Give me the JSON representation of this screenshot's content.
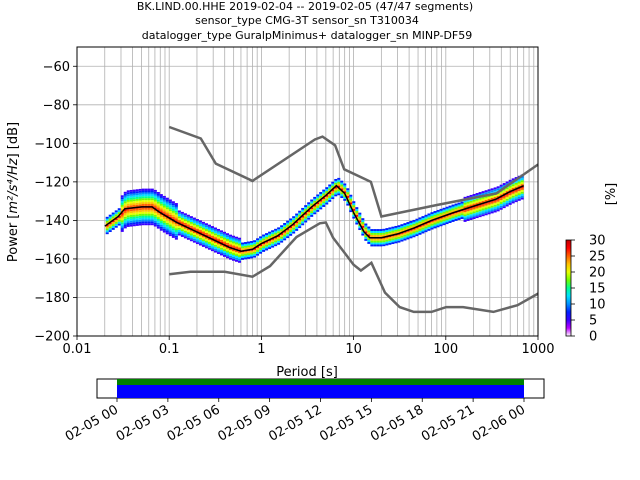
{
  "chart_data": [
    {
      "type": "heatmap",
      "title_lines": [
        "BK.LIND.00.HHE   2019-02-04 -- 2019-02-05  (47/47 segments)",
        "sensor_type CMG-3T sensor_sn T310034",
        "datalogger_type GuralpMinimus+ datalogger_sn MINP-DF59"
      ],
      "xlabel": "Period [s]",
      "ylabel_prefix": "Power [",
      "ylabel_math": "m²/s⁴/Hz",
      "ylabel_suffix": "] [dB]",
      "x_scale": "log",
      "xlim": [
        0.01,
        1000
      ],
      "ylim": [
        -200,
        -50
      ],
      "xticks": [
        0.01,
        0.1,
        1,
        10,
        100,
        1000
      ],
      "xtick_labels": [
        "0.01",
        "0.1",
        "1",
        "10",
        "100",
        "1000"
      ],
      "yticks": [
        -60,
        -80,
        -100,
        -120,
        -140,
        -160,
        -180,
        -200
      ],
      "ytick_labels": [
        "−60",
        "−80",
        "−100",
        "−120",
        "−140",
        "−160",
        "−180",
        "−200"
      ],
      "grid": true,
      "noise_models": [
        {
          "name": "NHNM",
          "color": "#666666",
          "points": [
            [
              0.1,
              -91.5
            ],
            [
              0.22,
              -97.5
            ],
            [
              0.32,
              -110.5
            ],
            [
              0.8,
              -119.5
            ],
            [
              3.8,
              -98
            ],
            [
              4.6,
              -96.5
            ],
            [
              6.3,
              -101
            ],
            [
              7.9,
              -113.5
            ],
            [
              15.4,
              -120
            ],
            [
              20,
              -138
            ],
            [
              80,
              -132
            ],
            [
              354,
              -126
            ],
            [
              1000,
              -111
            ]
          ]
        },
        {
          "name": "NLNM",
          "color": "#666666",
          "points": [
            [
              0.1,
              -168
            ],
            [
              0.17,
              -166.7
            ],
            [
              0.4,
              -166.7
            ],
            [
              0.8,
              -169.2
            ],
            [
              1.24,
              -163.7
            ],
            [
              2.4,
              -148.6
            ],
            [
              4.3,
              -141.5
            ],
            [
              5.0,
              -141.1
            ],
            [
              6.0,
              -149
            ],
            [
              10,
              -163
            ],
            [
              12,
              -166
            ],
            [
              15.6,
              -162
            ],
            [
              21.9,
              -177.5
            ],
            [
              31.6,
              -185
            ],
            [
              45,
              -187.5
            ],
            [
              70,
              -187.5
            ],
            [
              101,
              -185
            ],
            [
              154,
              -185
            ],
            [
              328,
              -187.5
            ],
            [
              600,
              -184
            ],
            [
              1000,
              -178
            ]
          ]
        }
      ],
      "mode_curve": {
        "color": "#000000",
        "points": [
          [
            0.02,
            -143
          ],
          [
            0.028,
            -138
          ],
          [
            0.033,
            -134
          ],
          [
            0.05,
            -133
          ],
          [
            0.065,
            -133
          ],
          [
            0.08,
            -136
          ],
          [
            0.12,
            -141
          ],
          [
            0.18,
            -145
          ],
          [
            0.3,
            -150
          ],
          [
            0.45,
            -154
          ],
          [
            0.6,
            -156
          ],
          [
            0.8,
            -155
          ],
          [
            1.0,
            -152
          ],
          [
            1.5,
            -148
          ],
          [
            2.2,
            -142
          ],
          [
            3.5,
            -133
          ],
          [
            5,
            -127
          ],
          [
            6.5,
            -122
          ],
          [
            8,
            -126
          ],
          [
            10,
            -136
          ],
          [
            13,
            -146
          ],
          [
            15,
            -149
          ],
          [
            20,
            -149
          ],
          [
            30,
            -147
          ],
          [
            45,
            -144
          ],
          [
            70,
            -140
          ],
          [
            120,
            -136
          ],
          [
            220,
            -132
          ],
          [
            350,
            -129
          ],
          [
            500,
            -125
          ],
          [
            700,
            -122
          ]
        ]
      },
      "density_color_range": [
        0,
        30
      ]
    },
    {
      "type": "colorbar",
      "label": "[%]",
      "ticks": [
        0,
        5,
        10,
        15,
        20,
        25,
        30
      ],
      "tick_labels": [
        "0",
        "5",
        "10",
        "15",
        "20",
        "25",
        "30"
      ],
      "colormap": [
        "#ffffff",
        "#ba00ff",
        "#3a00ff",
        "#0020ff",
        "#0090ff",
        "#00e0ff",
        "#00ff90",
        "#70ff00",
        "#e8ff00",
        "#ffc000",
        "#ff6000",
        "#ff0000",
        "#c00000"
      ]
    },
    {
      "type": "coverage",
      "xtick_labels": [
        "02-05 00",
        "02-05 03",
        "02-05 06",
        "02-05 09",
        "02-05 12",
        "02-05 15",
        "02-05 18",
        "02-05 21",
        "02-06 00"
      ],
      "bars": [
        {
          "name": "data coverage",
          "color": "#008000"
        },
        {
          "name": "psd coverage",
          "color": "#0000ff"
        }
      ]
    }
  ]
}
